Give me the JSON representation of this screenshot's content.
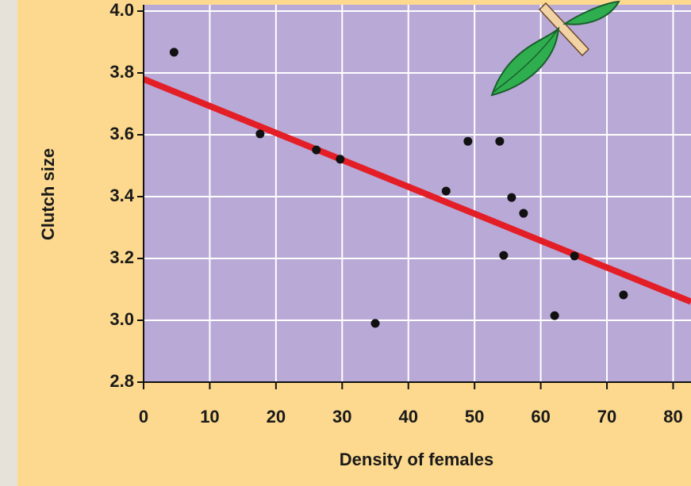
{
  "chart_data": {
    "type": "scatter",
    "x_label": "Density of females",
    "y_label": "Clutch size",
    "x": [
      4.6,
      17.6,
      26.1,
      29.7,
      35.0,
      45.7,
      49.0,
      53.8,
      55.6,
      57.4,
      54.4,
      62.1,
      65.1,
      72.5
    ],
    "values": [
      3.867,
      3.603,
      3.551,
      3.521,
      2.99,
      3.418,
      3.579,
      3.579,
      3.397,
      3.346,
      3.21,
      3.015,
      3.208,
      3.082
    ],
    "color": "#111111",
    "fit": {
      "x": [
        0,
        82.7
      ],
      "values": [
        3.78,
        3.06
      ],
      "color": "#e41e26"
    },
    "xlim": [
      0,
      82.7
    ],
    "ylim": [
      2.8,
      4.0
    ],
    "xticks": [
      0,
      10,
      20,
      30,
      40,
      50,
      60,
      70,
      80
    ],
    "yticks": [
      2.8,
      {
        "value": 3,
        "label": "3.0"
      },
      3.2,
      3.4,
      3.6,
      3.8,
      {
        "value": 4,
        "label": "4.0"
      }
    ],
    "grid": true
  }
}
